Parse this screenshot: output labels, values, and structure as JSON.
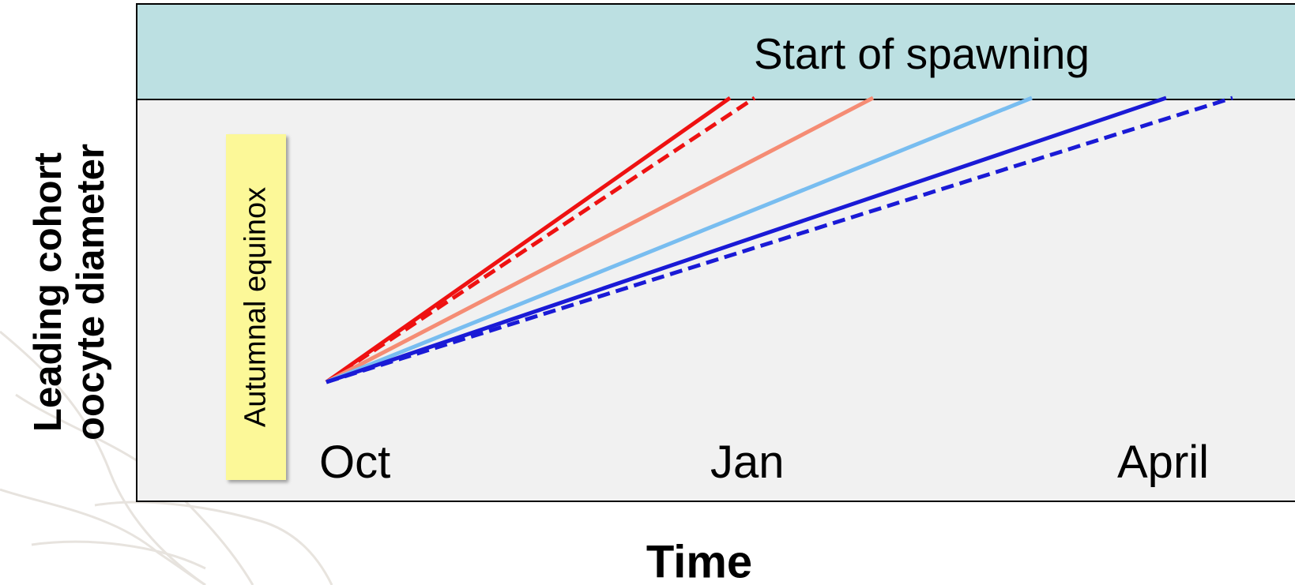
{
  "yaxis": {
    "line1": "Leading cohort",
    "line2": "oocyte diameter"
  },
  "xaxis": {
    "label": "Time"
  },
  "band": {
    "label": "Start of spawning",
    "color": "#bce0e2"
  },
  "equinox": {
    "label": "Autumnal equinox",
    "color": "#fcf898"
  },
  "months": {
    "oct": "Oct",
    "jan": "Jan",
    "april": "April"
  },
  "lines": [
    {
      "color": "#ee1111",
      "style": "solid"
    },
    {
      "color": "#ee1111",
      "style": "dashed"
    },
    {
      "color": "#f58c74",
      "style": "solid"
    },
    {
      "color": "#78bdf0",
      "style": "solid"
    },
    {
      "color": "#1a1ad6",
      "style": "solid"
    },
    {
      "color": "#1a1ad6",
      "style": "dashed"
    }
  ]
}
